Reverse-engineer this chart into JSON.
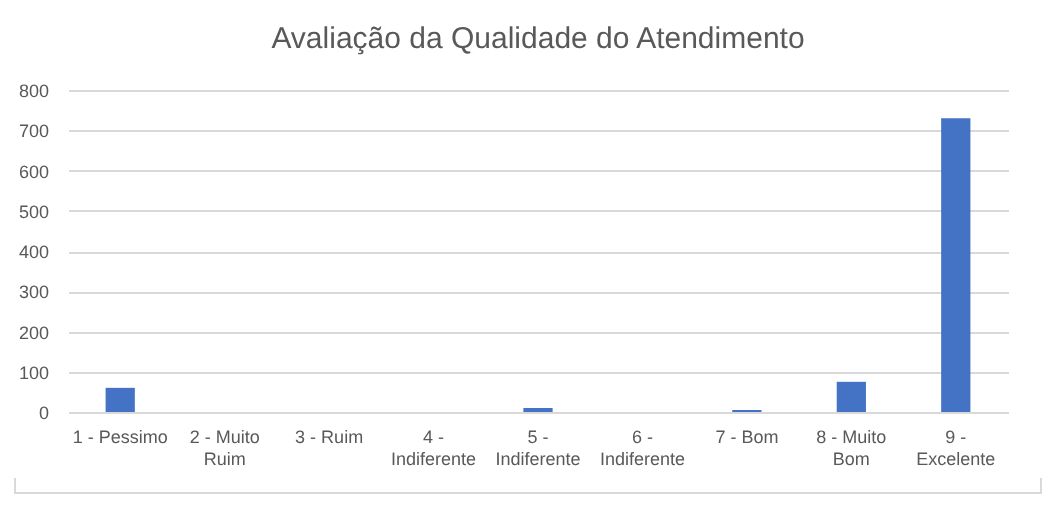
{
  "chart_data": {
    "type": "bar",
    "title": "Avaliação da Qualidade do Atendimento",
    "categories": [
      "1 - Pessimo",
      "2 - Muito Ruim",
      "3 - Ruim",
      "4 - Indiferente",
      "5 - Indiferente",
      "6 - Indiferente",
      "7 - Bom",
      "8 - Muito Bom",
      "9 - Excelente"
    ],
    "values": [
      60,
      0,
      0,
      0,
      10,
      0,
      5,
      75,
      730
    ],
    "color": "#4472c4",
    "ylim": [
      0,
      800
    ],
    "yticks": [
      0,
      100,
      200,
      300,
      400,
      500,
      600,
      700,
      800
    ],
    "grid": "y"
  }
}
